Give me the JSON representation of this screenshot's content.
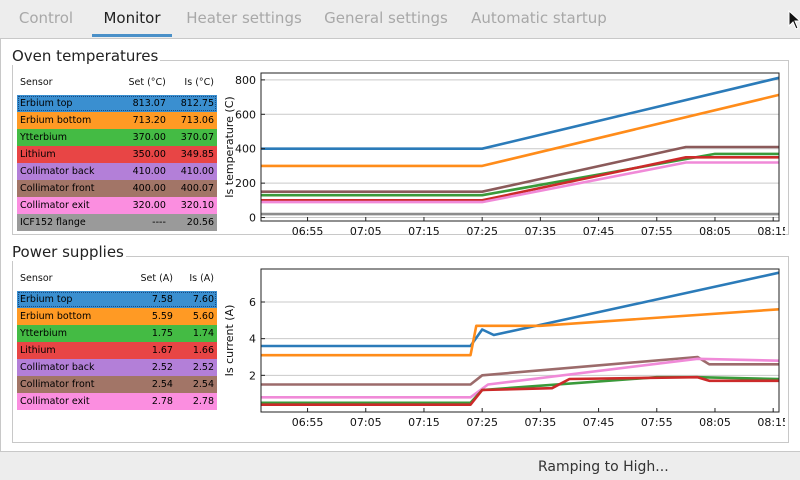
{
  "tabs": [
    {
      "label": "Control",
      "active": false
    },
    {
      "label": "Monitor",
      "active": true
    },
    {
      "label": "Heater settings",
      "active": false
    },
    {
      "label": "General settings",
      "active": false
    },
    {
      "label": "Automatic startup",
      "active": false
    }
  ],
  "oven": {
    "title": "Oven temperatures",
    "headers": {
      "sensor": "Sensor",
      "set": "Set (°C)",
      "is": "Is (°C)"
    },
    "rows": [
      {
        "sensor": "Erbium top",
        "set": "813.07",
        "is": "812.75",
        "color": "#3a8fd0",
        "selected": true
      },
      {
        "sensor": "Erbium bottom",
        "set": "713.20",
        "is": "713.06",
        "color": "#ff9a24"
      },
      {
        "sensor": "Ytterbium",
        "set": "370.00",
        "is": "370.07",
        "color": "#44bb44"
      },
      {
        "sensor": "Lithium",
        "set": "350.00",
        "is": "349.85",
        "color": "#e84545"
      },
      {
        "sensor": "Collimator back",
        "set": "410.00",
        "is": "410.00",
        "color": "#b37fd8"
      },
      {
        "sensor": "Collimator front",
        "set": "400.00",
        "is": "400.07",
        "color": "#a27567"
      },
      {
        "sensor": "Collimator exit",
        "set": "320.00",
        "is": "320.10",
        "color": "#fb8ee0"
      },
      {
        "sensor": "ICF152 flange",
        "set": "----",
        "is": "20.56",
        "color": "#9a9a9a"
      }
    ]
  },
  "power": {
    "title": "Power supplies",
    "headers": {
      "sensor": "Sensor",
      "set": "Set (A)",
      "is": "Is (A)"
    },
    "rows": [
      {
        "sensor": "Erbium top",
        "set": "7.58",
        "is": "7.60",
        "color": "#3a8fd0",
        "selected": true
      },
      {
        "sensor": "Erbium bottom",
        "set": "5.59",
        "is": "5.60",
        "color": "#ff9a24"
      },
      {
        "sensor": "Ytterbium",
        "set": "1.75",
        "is": "1.74",
        "color": "#44bb44"
      },
      {
        "sensor": "Lithium",
        "set": "1.67",
        "is": "1.66",
        "color": "#e84545"
      },
      {
        "sensor": "Collimator back",
        "set": "2.52",
        "is": "2.52",
        "color": "#b37fd8"
      },
      {
        "sensor": "Collimator front",
        "set": "2.54",
        "is": "2.54",
        "color": "#a27567"
      },
      {
        "sensor": "Collimator exit",
        "set": "2.78",
        "is": "2.78",
        "color": "#fb8ee0"
      }
    ]
  },
  "status": "Ramping to High...",
  "chart_data": [
    {
      "type": "line",
      "title": "",
      "xlabel": "",
      "ylabel": "Is temperature (C)",
      "x_ticks": [
        "06:55",
        "07:05",
        "07:15",
        "07:25",
        "07:35",
        "07:45",
        "07:55",
        "08:05",
        "08:15"
      ],
      "x_range": [
        "06:47",
        "08:16"
      ],
      "ylim": [
        -20,
        840
      ],
      "y_ticks": [
        0,
        200,
        400,
        600,
        800
      ],
      "grid": "horizontal",
      "series": [
        {
          "color": "#2b7bb9",
          "x": [
            "06:47",
            "07:25",
            "08:16"
          ],
          "y": [
            400,
            400,
            812
          ]
        },
        {
          "color": "#ff8c1a",
          "x": [
            "06:47",
            "07:25",
            "08:16"
          ],
          "y": [
            300,
            300,
            713
          ]
        },
        {
          "color": "#8b5a5a",
          "x": [
            "06:47",
            "07:25",
            "08:00",
            "08:16"
          ],
          "y": [
            150,
            150,
            410,
            410
          ]
        },
        {
          "color": "#3a9a3a",
          "x": [
            "06:47",
            "07:25",
            "08:05",
            "08:16"
          ],
          "y": [
            130,
            130,
            370,
            370
          ]
        },
        {
          "color": "#cc2a2a",
          "x": [
            "06:47",
            "07:25",
            "08:00",
            "08:16"
          ],
          "y": [
            100,
            100,
            350,
            350
          ]
        },
        {
          "color": "#f08ad8",
          "x": [
            "06:47",
            "07:25",
            "08:00",
            "08:16"
          ],
          "y": [
            90,
            90,
            320,
            320
          ]
        },
        {
          "color": "#8c8c8c",
          "x": [
            "06:47",
            "08:16"
          ],
          "y": [
            20,
            20
          ]
        }
      ]
    },
    {
      "type": "line",
      "title": "",
      "xlabel": "",
      "ylabel": "Is current (A)",
      "x_ticks": [
        "06:55",
        "07:05",
        "07:15",
        "07:25",
        "07:35",
        "07:45",
        "07:55",
        "08:05",
        "08:15"
      ],
      "x_range": [
        "06:47",
        "08:16"
      ],
      "ylim": [
        0,
        7.8
      ],
      "y_ticks": [
        2,
        4,
        6
      ],
      "grid": "horizontal",
      "series": [
        {
          "color": "#2b7bb9",
          "x": [
            "06:47",
            "07:23",
            "07:25",
            "07:27",
            "08:16"
          ],
          "y": [
            3.6,
            3.6,
            4.5,
            4.2,
            7.6
          ]
        },
        {
          "color": "#ff8c1a",
          "x": [
            "06:47",
            "07:23",
            "07:24",
            "07:35",
            "08:16"
          ],
          "y": [
            3.1,
            3.1,
            4.7,
            4.7,
            5.6
          ]
        },
        {
          "color": "#9c6b6b",
          "x": [
            "06:47",
            "07:23",
            "07:25",
            "08:02",
            "08:04",
            "08:16"
          ],
          "y": [
            1.5,
            1.5,
            2.0,
            3.0,
            2.6,
            2.6
          ]
        },
        {
          "color": "#f08ad8",
          "x": [
            "06:47",
            "07:23",
            "07:26",
            "08:02",
            "08:16"
          ],
          "y": [
            0.8,
            0.8,
            1.5,
            2.9,
            2.8
          ]
        },
        {
          "color": "#3a9a3a",
          "x": [
            "06:47",
            "07:23",
            "07:25",
            "07:55",
            "08:02",
            "08:16"
          ],
          "y": [
            0.5,
            0.5,
            1.2,
            1.9,
            1.9,
            1.8
          ]
        },
        {
          "color": "#cc2a2a",
          "x": [
            "06:47",
            "07:23",
            "07:25",
            "07:37",
            "07:40",
            "08:02",
            "08:04",
            "08:16"
          ],
          "y": [
            0.4,
            0.4,
            1.2,
            1.3,
            1.8,
            1.9,
            1.7,
            1.7
          ]
        }
      ]
    }
  ]
}
